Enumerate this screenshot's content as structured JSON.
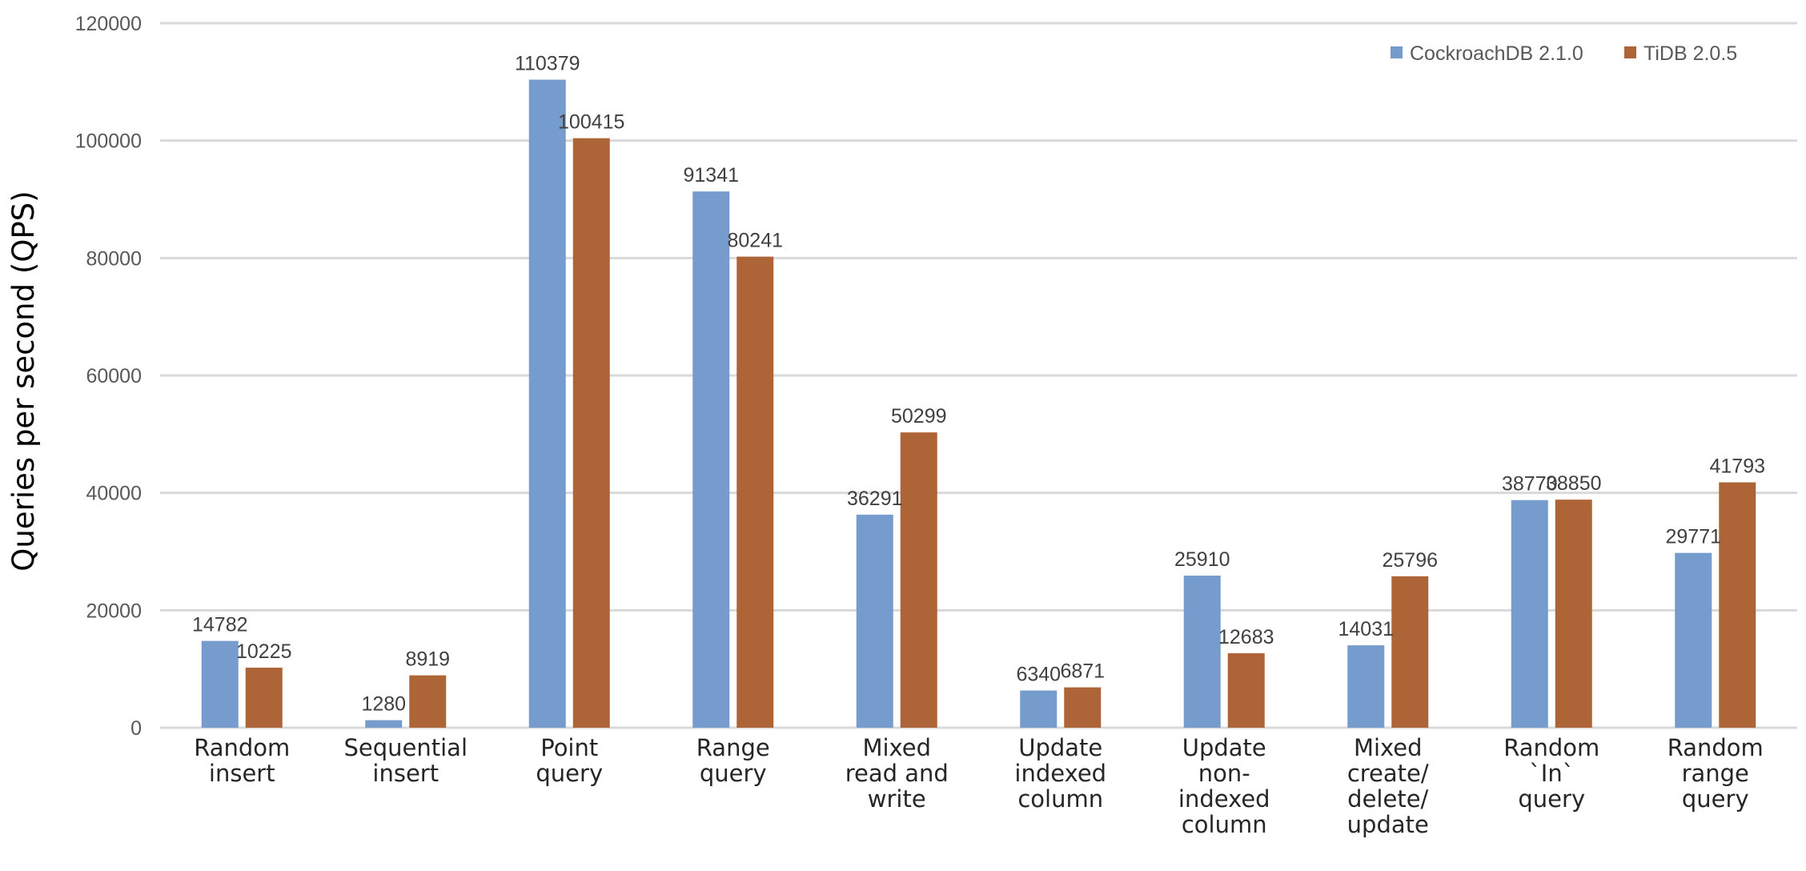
{
  "chart_data": {
    "type": "bar",
    "ylabel": "Queries per second (QPS)",
    "xlabel": "",
    "ylim": [
      0,
      120000
    ],
    "yticks": [
      0,
      20000,
      40000,
      60000,
      80000,
      100000,
      120000
    ],
    "grid": true,
    "legend_position": "top-right",
    "categories": [
      [
        "Random",
        "insert"
      ],
      [
        "Sequential",
        "insert"
      ],
      [
        "Point",
        "query"
      ],
      [
        "Range",
        "query"
      ],
      [
        "Mixed",
        "read and",
        "write"
      ],
      [
        "Update",
        "indexed",
        "column"
      ],
      [
        "Update",
        "non-",
        "indexed",
        "column"
      ],
      [
        "Mixed",
        "create/",
        "delete/",
        "update"
      ],
      [
        "Random",
        "`In`",
        "query"
      ],
      [
        "Random",
        "range",
        "query"
      ]
    ],
    "series": [
      {
        "name": "CockroachDB 2.1.0",
        "color": "#759ccd",
        "values": [
          14782,
          1280,
          110379,
          91341,
          36291,
          6340,
          25910,
          14031,
          38770,
          29771
        ]
      },
      {
        "name": "TiDB 2.0.5",
        "color": "#ad6538",
        "values": [
          10225,
          8919,
          100415,
          80241,
          50299,
          6871,
          12683,
          25796,
          38850,
          41793
        ]
      }
    ]
  }
}
